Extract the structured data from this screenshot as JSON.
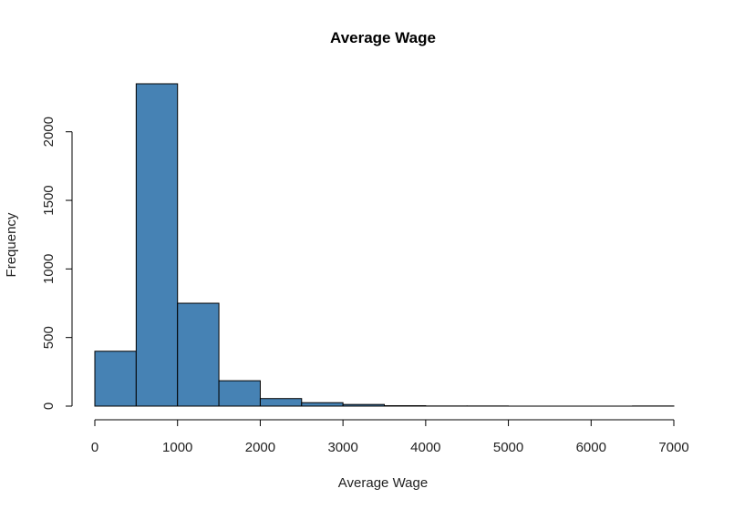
{
  "chart_data": {
    "type": "bar",
    "subtype": "histogram",
    "title": "Average Wage",
    "xlabel": "Average Wage",
    "ylabel": "Frequency",
    "bins": [
      {
        "start": 0,
        "end": 500,
        "count": 400
      },
      {
        "start": 500,
        "end": 1000,
        "count": 2350
      },
      {
        "start": 1000,
        "end": 1500,
        "count": 750
      },
      {
        "start": 1500,
        "end": 2000,
        "count": 185
      },
      {
        "start": 2000,
        "end": 2500,
        "count": 55
      },
      {
        "start": 2500,
        "end": 3000,
        "count": 25
      },
      {
        "start": 3000,
        "end": 3500,
        "count": 12
      },
      {
        "start": 3500,
        "end": 4000,
        "count": 3
      },
      {
        "start": 4000,
        "end": 4500,
        "count": 1
      },
      {
        "start": 4500,
        "end": 5000,
        "count": 1
      },
      {
        "start": 5000,
        "end": 5500,
        "count": 0
      },
      {
        "start": 5500,
        "end": 6000,
        "count": 0
      },
      {
        "start": 6000,
        "end": 6500,
        "count": 0
      },
      {
        "start": 6500,
        "end": 7000,
        "count": 1
      }
    ],
    "xlim": [
      0,
      7000
    ],
    "ylim": [
      0,
      2350
    ],
    "xticks": [
      "0",
      "1000",
      "2000",
      "3000",
      "4000",
      "5000",
      "6000",
      "7000"
    ],
    "yticks": [
      "0",
      "500",
      "1000",
      "1500",
      "2000"
    ],
    "bar_color": "#4682B4",
    "bar_edge_color": "#000000",
    "grid": false,
    "legend": "none"
  }
}
